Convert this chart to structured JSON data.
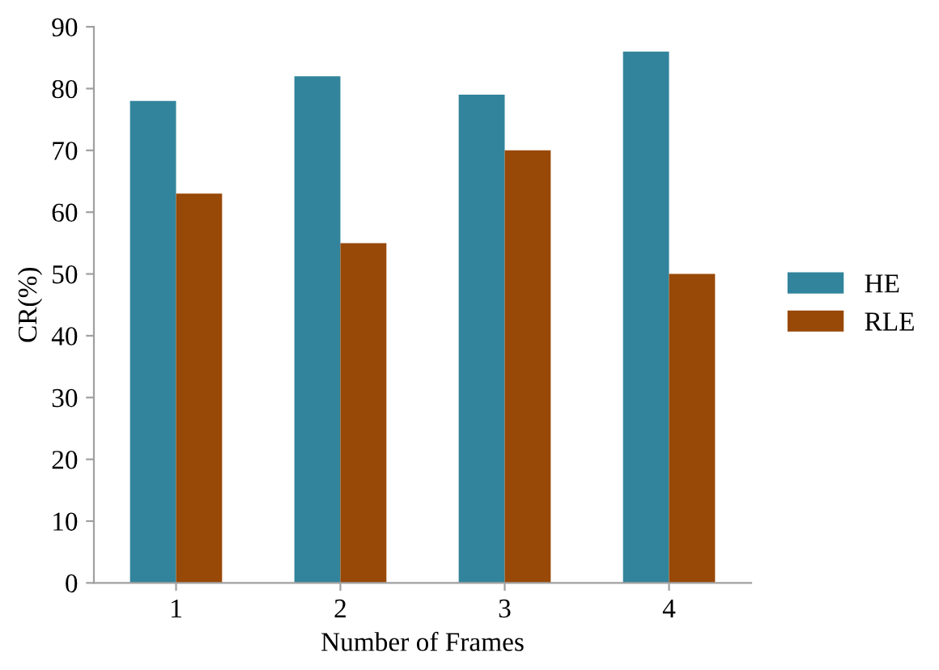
{
  "chart_data": {
    "type": "bar",
    "xlabel": "Number of Frames",
    "ylabel": "CR(%)",
    "categories": [
      "1",
      "2",
      "3",
      "4"
    ],
    "series": [
      {
        "name": "HE",
        "color": "#31849b",
        "values": [
          78,
          82,
          79,
          86
        ]
      },
      {
        "name": "RLE",
        "color": "#984807",
        "values": [
          63,
          55,
          70,
          50
        ]
      }
    ],
    "ylim": [
      0,
      90
    ],
    "yticks": [
      0,
      10,
      20,
      30,
      40,
      50,
      60,
      70,
      80,
      90
    ],
    "grid": false,
    "legend": "right"
  }
}
